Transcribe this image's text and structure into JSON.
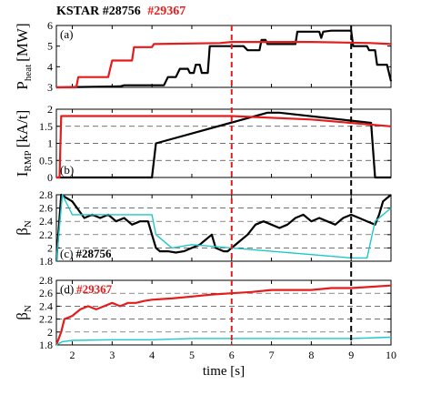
{
  "header": {
    "shot_black": "KSTAR #28756",
    "shot_red": "#29367"
  },
  "colors": {
    "black": "#000000",
    "red": "#e51c1c",
    "cyan": "#1fc7c9",
    "axis": "#000000"
  },
  "watermark": "",
  "chart_data": [
    {
      "type": "line",
      "panel_label": "(a)",
      "ylabel": "P_heat [MW]",
      "ylabel_main": "P",
      "ylabel_sub": "heat",
      "ylabel_unit": "[MW]",
      "ylim": [
        3,
        6
      ],
      "yticks": [
        "3",
        "4",
        "5",
        "6"
      ],
      "series": [
        {
          "color": "black",
          "points": [
            [
              1.6,
              3.0
            ],
            [
              3.2,
              3.05
            ],
            [
              3.3,
              3.1
            ],
            [
              4.3,
              3.1
            ],
            [
              4.4,
              3.5
            ],
            [
              4.6,
              3.5
            ],
            [
              4.7,
              3.9
            ],
            [
              4.9,
              3.9
            ],
            [
              4.95,
              3.7
            ],
            [
              5.05,
              3.7
            ],
            [
              5.1,
              4.1
            ],
            [
              5.2,
              4.1
            ],
            [
              5.25,
              3.7
            ],
            [
              5.4,
              3.7
            ],
            [
              5.45,
              5.0
            ],
            [
              6.3,
              5.0
            ],
            [
              6.4,
              4.8
            ],
            [
              6.7,
              4.8
            ],
            [
              6.75,
              5.3
            ],
            [
              6.85,
              5.3
            ],
            [
              6.9,
              5.1
            ],
            [
              7.6,
              5.1
            ],
            [
              7.65,
              5.7
            ],
            [
              8.2,
              5.7
            ],
            [
              8.25,
              5.4
            ],
            [
              8.3,
              5.7
            ],
            [
              8.5,
              5.75
            ],
            [
              9.0,
              5.75
            ],
            [
              9.05,
              5.0
            ],
            [
              9.4,
              5.0
            ],
            [
              9.45,
              4.8
            ],
            [
              9.6,
              4.8
            ],
            [
              9.65,
              4.1
            ],
            [
              9.9,
              4.1
            ],
            [
              10.0,
              3.3
            ]
          ]
        },
        {
          "color": "red",
          "points": [
            [
              1.6,
              3.0
            ],
            [
              2.1,
              3.0
            ],
            [
              2.15,
              3.5
            ],
            [
              2.9,
              3.5
            ],
            [
              3.0,
              4.3
            ],
            [
              3.5,
              4.3
            ],
            [
              3.55,
              4.95
            ],
            [
              4.0,
              4.95
            ],
            [
              4.05,
              5.1
            ],
            [
              5.7,
              5.15
            ],
            [
              6.0,
              5.2
            ],
            [
              7.0,
              5.2
            ],
            [
              8.0,
              5.2
            ],
            [
              9.5,
              5.15
            ],
            [
              10.0,
              5.1
            ]
          ]
        }
      ]
    },
    {
      "type": "line",
      "panel_label": "(b)",
      "ylabel": "I_RMP [kA/t]",
      "ylabel_main": "I",
      "ylabel_sub": "RMP",
      "ylabel_unit": "[kA/t]",
      "ylim": [
        0,
        2
      ],
      "yticks": [
        "0",
        "0.5",
        "1",
        "1.5",
        "2"
      ],
      "series": [
        {
          "color": "black",
          "points": [
            [
              1.6,
              0.0
            ],
            [
              4.0,
              0.0
            ],
            [
              4.1,
              1.0
            ],
            [
              6.9,
              1.9
            ],
            [
              7.2,
              1.9
            ],
            [
              9.5,
              1.6
            ],
            [
              9.6,
              0.0
            ],
            [
              10.0,
              0.0
            ]
          ]
        },
        {
          "color": "red",
          "points": [
            [
              1.6,
              0.0
            ],
            [
              1.68,
              0.0
            ],
            [
              1.72,
              1.8
            ],
            [
              6.0,
              1.8
            ],
            [
              8.0,
              1.7
            ],
            [
              10.0,
              1.5
            ]
          ]
        }
      ]
    },
    {
      "type": "line",
      "panel_label": "(c)",
      "panel_tag": "#28756",
      "ylabel": "β_N",
      "ylabel_main": "β",
      "ylabel_sub": "N",
      "ylim": [
        1.8,
        2.8
      ],
      "yticks": [
        "1.8",
        "2",
        "2.2",
        "2.4",
        "2.6",
        "2.8"
      ],
      "series": [
        {
          "color": "black",
          "points": [
            [
              1.6,
              1.8
            ],
            [
              1.72,
              2.8
            ],
            [
              2.0,
              2.7
            ],
            [
              2.3,
              2.45
            ],
            [
              2.5,
              2.5
            ],
            [
              2.7,
              2.45
            ],
            [
              2.9,
              2.5
            ],
            [
              3.1,
              2.4
            ],
            [
              3.3,
              2.45
            ],
            [
              3.5,
              2.35
            ],
            [
              3.7,
              2.4
            ],
            [
              3.9,
              2.4
            ],
            [
              4.0,
              2.2
            ],
            [
              4.1,
              2.0
            ],
            [
              4.2,
              1.95
            ],
            [
              4.4,
              1.95
            ],
            [
              4.6,
              1.93
            ],
            [
              4.8,
              1.95
            ],
            [
              5.0,
              2.0
            ],
            [
              5.2,
              2.05
            ],
            [
              5.3,
              2.1
            ],
            [
              5.5,
              2.2
            ],
            [
              5.6,
              2.0
            ],
            [
              5.8,
              1.95
            ],
            [
              5.9,
              1.95
            ],
            [
              6.0,
              2.0
            ],
            [
              6.2,
              2.1
            ],
            [
              6.4,
              2.2
            ],
            [
              6.6,
              2.35
            ],
            [
              6.8,
              2.4
            ],
            [
              7.0,
              2.35
            ],
            [
              7.2,
              2.3
            ],
            [
              7.4,
              2.35
            ],
            [
              7.6,
              2.45
            ],
            [
              7.8,
              2.5
            ],
            [
              8.0,
              2.4
            ],
            [
              8.2,
              2.45
            ],
            [
              8.4,
              2.4
            ],
            [
              8.6,
              2.35
            ],
            [
              8.8,
              2.45
            ],
            [
              9.0,
              2.5
            ],
            [
              9.2,
              2.45
            ],
            [
              9.4,
              2.4
            ],
            [
              9.6,
              2.35
            ],
            [
              9.7,
              2.5
            ],
            [
              9.8,
              2.7
            ],
            [
              9.9,
              2.75
            ],
            [
              10.0,
              2.8
            ]
          ]
        },
        {
          "color": "cyan",
          "points": [
            [
              1.6,
              1.8
            ],
            [
              1.75,
              2.8
            ],
            [
              2.0,
              2.5
            ],
            [
              3.0,
              2.5
            ],
            [
              4.0,
              2.5
            ],
            [
              4.1,
              2.2
            ],
            [
              4.5,
              2.0
            ],
            [
              5.0,
              2.05
            ],
            [
              6.0,
              2.0
            ],
            [
              7.0,
              1.95
            ],
            [
              8.0,
              1.9
            ],
            [
              9.0,
              1.85
            ],
            [
              9.4,
              1.85
            ],
            [
              9.6,
              2.4
            ],
            [
              10.0,
              2.6
            ]
          ]
        }
      ]
    },
    {
      "type": "line",
      "panel_label": "(d)",
      "panel_tag": "#29367",
      "ylabel": "β_N",
      "ylabel_main": "β",
      "ylabel_sub": "N",
      "ylim": [
        1.8,
        2.8
      ],
      "yticks": [
        "1.8",
        "2",
        "2.2",
        "2.4",
        "2.6",
        "2.8"
      ],
      "xlabel": "time [s]",
      "xlim": [
        1.6,
        10
      ],
      "xticks": [
        "2",
        "3",
        "4",
        "5",
        "6",
        "7",
        "8",
        "9",
        "10"
      ],
      "series": [
        {
          "color": "red",
          "points": [
            [
              1.6,
              1.8
            ],
            [
              1.72,
              2.0
            ],
            [
              1.8,
              2.2
            ],
            [
              2.0,
              2.25
            ],
            [
              2.2,
              2.35
            ],
            [
              2.4,
              2.4
            ],
            [
              2.6,
              2.35
            ],
            [
              2.8,
              2.4
            ],
            [
              3.0,
              2.45
            ],
            [
              3.2,
              2.4
            ],
            [
              3.4,
              2.45
            ],
            [
              3.6,
              2.45
            ],
            [
              3.8,
              2.48
            ],
            [
              4.0,
              2.5
            ],
            [
              4.5,
              2.52
            ],
            [
              5.0,
              2.55
            ],
            [
              5.5,
              2.58
            ],
            [
              6.0,
              2.6
            ],
            [
              6.5,
              2.62
            ],
            [
              7.0,
              2.65
            ],
            [
              7.5,
              2.65
            ],
            [
              8.0,
              2.65
            ],
            [
              8.5,
              2.68
            ],
            [
              9.0,
              2.68
            ],
            [
              9.5,
              2.7
            ],
            [
              10.0,
              2.72
            ]
          ]
        },
        {
          "color": "cyan",
          "points": [
            [
              1.6,
              1.8
            ],
            [
              1.75,
              1.85
            ],
            [
              2.0,
              1.87
            ],
            [
              3.0,
              1.88
            ],
            [
              4.0,
              1.88
            ],
            [
              5.0,
              1.9
            ],
            [
              6.0,
              1.9
            ],
            [
              7.0,
              1.9
            ],
            [
              8.0,
              1.9
            ],
            [
              9.0,
              1.9
            ],
            [
              10.0,
              1.92
            ]
          ]
        }
      ]
    }
  ],
  "markers": {
    "red_time": 6,
    "black_time": 9
  }
}
